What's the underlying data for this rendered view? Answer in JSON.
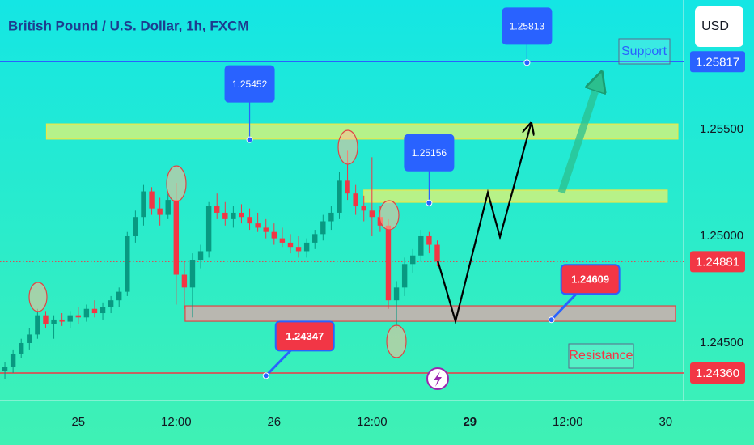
{
  "chart_data": {
    "type": "candlestick",
    "title": "British Pound / U.S. Dollar, 1h, FXCM",
    "currency": "USD",
    "x": [
      -9,
      -8,
      -7,
      -6,
      -5,
      -4,
      -3,
      -2,
      -1,
      0,
      1,
      2,
      3,
      4,
      5,
      6,
      7,
      8,
      9,
      10,
      11,
      12,
      13,
      14,
      15,
      16,
      17,
      18,
      19,
      20,
      21,
      22,
      23,
      24,
      25,
      26,
      27,
      28,
      29,
      30,
      31,
      32,
      33,
      34,
      35,
      36,
      37,
      38,
      39,
      40,
      41,
      42,
      43,
      44
    ],
    "open": [
      1.2437,
      1.2439,
      1.2445,
      1.245,
      1.2454,
      1.2463,
      1.2459,
      1.2461,
      1.246,
      1.2463,
      1.2462,
      1.2466,
      1.2464,
      1.2467,
      1.247,
      1.2474,
      1.25,
      1.2509,
      1.2521,
      1.2513,
      1.251,
      1.2517,
      1.2482,
      1.2476,
      1.2489,
      1.2493,
      1.2514,
      1.2511,
      1.2508,
      1.2511,
      1.2509,
      1.2506,
      1.2504,
      1.2502,
      1.2499,
      1.2497,
      1.2495,
      1.2493,
      1.2497,
      1.2501,
      1.2507,
      1.2511,
      1.2526,
      1.252,
      1.2514,
      1.2512,
      1.2509,
      1.2505,
      1.247,
      1.2476,
      1.2487,
      1.2491,
      1.25,
      1.2496
    ],
    "high": [
      1.2441,
      1.2447,
      1.2452,
      1.2457,
      1.2466,
      1.2465,
      1.2463,
      1.2464,
      1.2465,
      1.2467,
      1.2468,
      1.247,
      1.2469,
      1.2472,
      1.2476,
      1.2502,
      1.2512,
      1.2524,
      1.2523,
      1.2518,
      1.252,
      1.2525,
      1.2488,
      1.2492,
      1.2496,
      1.2516,
      1.252,
      1.2516,
      1.2514,
      1.2515,
      1.2513,
      1.2511,
      1.2508,
      1.2506,
      1.2504,
      1.2501,
      1.25,
      1.2499,
      1.2503,
      1.251,
      1.2514,
      1.253,
      1.254,
      1.2524,
      1.2519,
      1.2537,
      1.2514,
      1.2508,
      1.2479,
      1.249,
      1.2494,
      1.2503,
      1.2502,
      1.2498
    ],
    "low": [
      1.2433,
      1.2436,
      1.2443,
      1.2447,
      1.2452,
      1.2457,
      1.2452,
      1.2458,
      1.2457,
      1.2459,
      1.246,
      1.2462,
      1.2461,
      1.2464,
      1.2467,
      1.2472,
      1.2497,
      1.2505,
      1.251,
      1.2505,
      1.2508,
      1.2468,
      1.2466,
      1.2462,
      1.2485,
      1.249,
      1.2508,
      1.2505,
      1.2504,
      1.2506,
      1.2503,
      1.2502,
      1.2499,
      1.2496,
      1.2495,
      1.2492,
      1.249,
      1.249,
      1.2494,
      1.2498,
      1.2503,
      1.2508,
      1.2517,
      1.251,
      1.2507,
      1.25,
      1.2502,
      1.2466,
      1.2457,
      1.2472,
      1.2483,
      1.2488,
      1.2492,
      1.2486
    ],
    "close": [
      1.2439,
      1.2445,
      1.245,
      1.2454,
      1.2463,
      1.2459,
      1.2461,
      1.246,
      1.2463,
      1.2462,
      1.2466,
      1.2464,
      1.2467,
      1.247,
      1.2474,
      1.25,
      1.2509,
      1.2521,
      1.2513,
      1.251,
      1.2517,
      1.2482,
      1.2476,
      1.2489,
      1.2493,
      1.2514,
      1.2511,
      1.2508,
      1.2511,
      1.2509,
      1.2506,
      1.2504,
      1.2502,
      1.2499,
      1.2497,
      1.2495,
      1.2493,
      1.2497,
      1.2501,
      1.2507,
      1.2511,
      1.2526,
      1.252,
      1.2514,
      1.2512,
      1.2509,
      1.2505,
      1.247,
      1.2476,
      1.2487,
      1.2491,
      1.25,
      1.2496,
      1.24881
    ],
    "up_color": "#089981",
    "down_color": "#f23645",
    "xlim": [
      -9.6,
      74.2
    ],
    "ylim": [
      1.24231,
      1.26106
    ],
    "xticks": [
      {
        "value": 0,
        "label": "25"
      },
      {
        "value": 12,
        "label": "12:00"
      },
      {
        "value": 24,
        "label": "26"
      },
      {
        "value": 36,
        "label": "12:00"
      },
      {
        "value": 48,
        "label": "29"
      },
      {
        "value": 60,
        "label": "12:00"
      },
      {
        "value": 72,
        "label": "30"
      }
    ],
    "yticks": [
      {
        "value": 1.255,
        "label": "1.25500"
      },
      {
        "value": 1.25,
        "label": "1.25000"
      },
      {
        "value": 1.245,
        "label": "1.24500"
      }
    ],
    "price_lines": [
      {
        "value": 1.25817,
        "label": "1.25817",
        "color": "#2962ff",
        "style": "solid"
      },
      {
        "value": 1.24881,
        "label": "1.24881",
        "color": "#f23645",
        "style": "dotted"
      },
      {
        "value": 1.2436,
        "label": "1.24360",
        "color": "#f23645",
        "style": "solid"
      }
    ],
    "zones": [
      {
        "top": 1.25526,
        "bottom": 1.25455,
        "x": [
          -3.9,
          73.5
        ],
        "color": "#f5f56a"
      },
      {
        "top": 1.25216,
        "bottom": 1.25159,
        "x": [
          35,
          72.2
        ],
        "color": "#f5f56a"
      },
      {
        "top": 1.24674,
        "bottom": 1.24602,
        "x": [
          13.1,
          73.2
        ],
        "color": "#f2a0a8"
      }
    ],
    "callouts": [
      {
        "value": 1.25813,
        "x": 55,
        "color": "#2962ff"
      },
      {
        "value": 1.25452,
        "x": 21,
        "color": "#2962ff"
      },
      {
        "value": 1.25156,
        "x": 43,
        "color": "#2962ff"
      },
      {
        "value": 1.24609,
        "x": 58,
        "color": "#f23645"
      },
      {
        "value": 1.24347,
        "x": 23,
        "color": "#f23645"
      }
    ],
    "support_label": "Support",
    "resistance_label": "Resistance"
  }
}
